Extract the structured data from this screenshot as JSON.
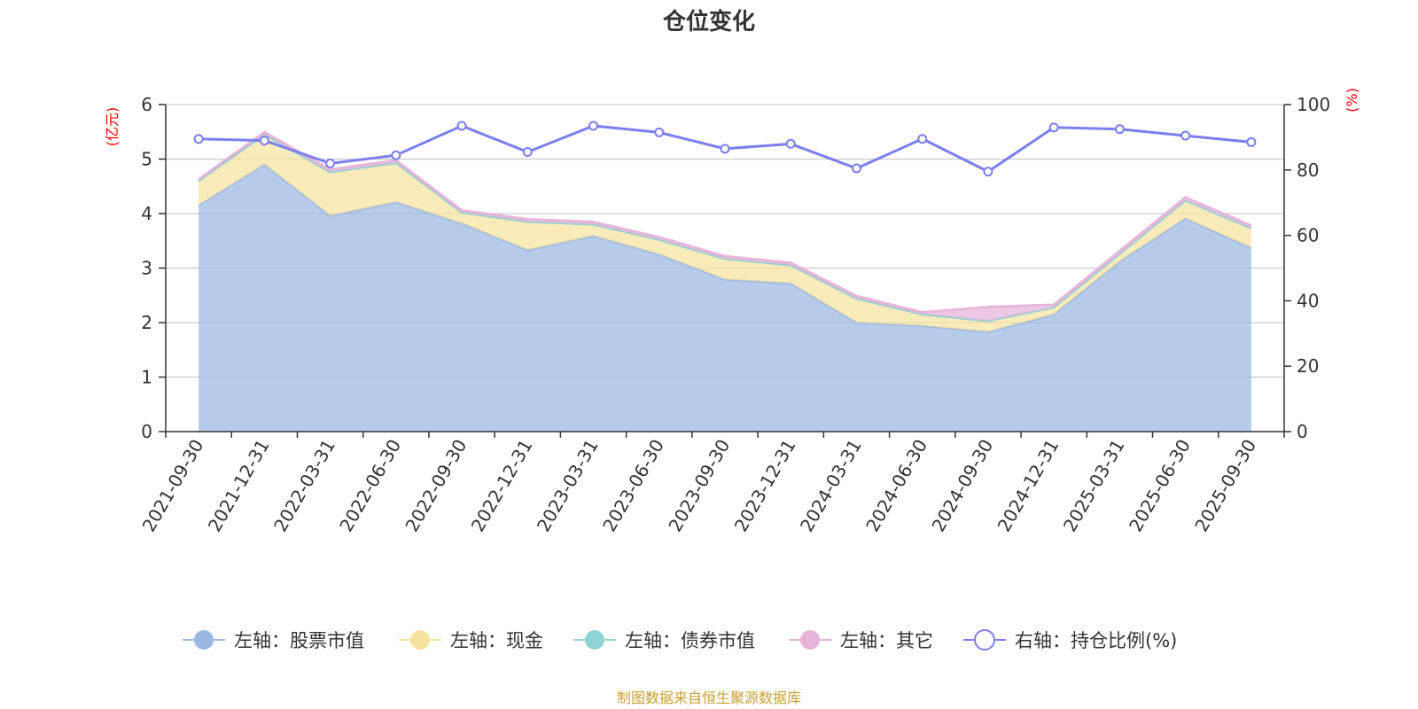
{
  "chart_data": {
    "type": "area",
    "title": "仓位变化",
    "left_axis": {
      "unit": "(亿元)",
      "ylim": [
        0,
        6
      ],
      "ticks": [
        "0",
        "1",
        "2",
        "3",
        "4",
        "5",
        "6"
      ]
    },
    "right_axis": {
      "unit": "(%)",
      "ylim": [
        0,
        100
      ],
      "ticks": [
        "0",
        "20",
        "40",
        "60",
        "80",
        "100"
      ]
    },
    "categories": [
      "2021-09-30",
      "2021-12-31",
      "2022-03-31",
      "2022-06-30",
      "2022-09-30",
      "2022-12-31",
      "2023-03-31",
      "2023-06-30",
      "2023-09-30",
      "2023-12-31",
      "2024-03-31",
      "2024-06-30",
      "2024-09-30",
      "2024-12-31",
      "2025-03-31",
      "2025-06-30",
      "2025-09-30"
    ],
    "series": [
      {
        "name": "左轴：股票市值",
        "axis": "left",
        "stack": true,
        "color": "#9bb8e3",
        "values": [
          4.15,
          4.9,
          3.96,
          4.21,
          3.82,
          3.33,
          3.59,
          3.25,
          2.79,
          2.72,
          2.0,
          1.94,
          1.83,
          2.15,
          3.12,
          3.91,
          3.37
        ]
      },
      {
        "name": "左轴：现金",
        "axis": "left",
        "stack": true,
        "color": "#f7e3a0",
        "values": [
          0.45,
          0.55,
          0.8,
          0.72,
          0.2,
          0.52,
          0.21,
          0.27,
          0.38,
          0.33,
          0.44,
          0.21,
          0.2,
          0.13,
          0.14,
          0.33,
          0.36
        ]
      },
      {
        "name": "左轴：债券市值",
        "axis": "left",
        "stack": true,
        "color": "#8fd4d4",
        "values": [
          0,
          0,
          0,
          0,
          0,
          0,
          0,
          0,
          0,
          0,
          0,
          0,
          0,
          0,
          0,
          0,
          0
        ]
      },
      {
        "name": "左轴：其它",
        "axis": "left",
        "stack": true,
        "color": "#e6b3d9",
        "values": [
          0.03,
          0.05,
          0.05,
          0.05,
          0.04,
          0.05,
          0.05,
          0.05,
          0.05,
          0.05,
          0.05,
          0.04,
          0.26,
          0.05,
          0.06,
          0.06,
          0.05
        ]
      },
      {
        "name": "右轴：持仓比例(%)",
        "axis": "right",
        "color": "#7b7ff0",
        "values": [
          89.5,
          89.0,
          82.0,
          84.5,
          93.5,
          85.5,
          93.5,
          91.5,
          86.5,
          88.0,
          80.5,
          89.5,
          79.5,
          93.0,
          92.5,
          90.5,
          88.5
        ]
      }
    ],
    "legend": [
      "左轴：股票市值",
      "左轴：现金",
      "左轴：债券市值",
      "左轴：其它",
      "右轴：持仓比例(%)"
    ],
    "legend_position": "bottom",
    "grid": true,
    "source": "制图数据来自恒生聚源数据库"
  }
}
